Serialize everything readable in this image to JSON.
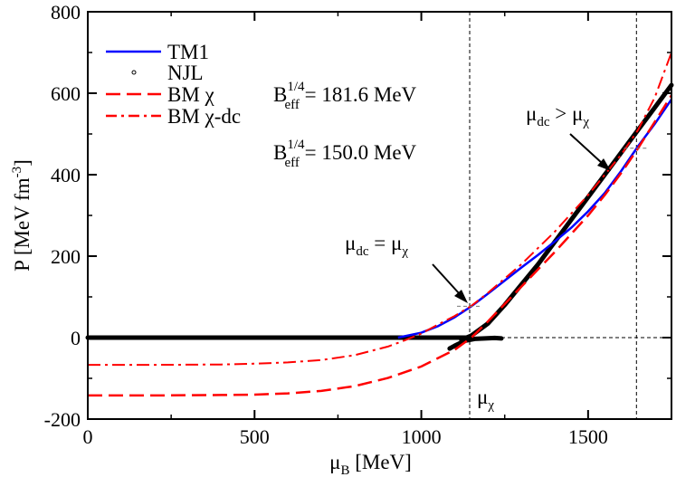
{
  "chart_data": {
    "type": "line",
    "title": "",
    "xlabel_main": "μ",
    "xlabel_sub": "B",
    "xlabel_unit": " [MeV]",
    "ylabel_main": "P [MeV fm",
    "ylabel_sup": "-3",
    "ylabel_end": "]",
    "xlim": [
      0,
      1750
    ],
    "ylim": [
      -200,
      800
    ],
    "xticks": [
      0,
      500,
      1000,
      1500
    ],
    "xtick_labels": [
      "0",
      "500",
      "1000",
      "1500"
    ],
    "yticks": [
      -200,
      0,
      200,
      400,
      600,
      800
    ],
    "ytick_labels": [
      "-200",
      "0",
      "200",
      "400",
      "600",
      "800"
    ],
    "legend": [
      {
        "label": "TM1",
        "color": "#0000ff",
        "style": "solid"
      },
      {
        "label": "NJL",
        "color": "#000000",
        "style": "circle"
      },
      {
        "label": "BM χ",
        "color": "#ff0000",
        "style": "dashed"
      },
      {
        "label": "BM χ-dc",
        "color": "#ff0000",
        "style": "dashdot"
      }
    ],
    "bag_labels": [
      {
        "prefix": "B",
        "sub": "eff",
        "sup": "1/4",
        "value": " = 181.6 MeV"
      },
      {
        "prefix": "B",
        "sub": "eff",
        "sup": "1/4",
        "value": " = 150.0 MeV"
      }
    ],
    "series": [
      {
        "name": "TM1",
        "color": "#0000ff",
        "x": [
          930,
          1000,
          1050,
          1100,
          1150,
          1200,
          1250,
          1300,
          1350,
          1400,
          1450,
          1500,
          1550,
          1600,
          1650,
          1700,
          1750
        ],
        "y": [
          0,
          12,
          28,
          50,
          77,
          108,
          140,
          172,
          203,
          236,
          270,
          310,
          355,
          410,
          470,
          525,
          585
        ]
      },
      {
        "name": "NJL",
        "color": "#000000",
        "segments": [
          {
            "x": [
              0,
              200,
              400,
              600,
              800,
              1000,
              1100,
              1140
            ],
            "y": [
              0,
              0,
              0,
              0,
              0,
              0,
              0,
              0
            ]
          },
          {
            "x": [
              1085,
              1100,
              1130,
              1160,
              1190,
              1220,
              1240
            ],
            "y": [
              -27,
              -20,
              -8,
              -3,
              -2,
              -1,
              -2
            ]
          },
          {
            "x": [
              1120,
              1150,
              1200,
              1250,
              1300,
              1350,
              1400,
              1450,
              1500,
              1550,
              1600,
              1650,
              1700,
              1750
            ],
            "y": [
              -5,
              5,
              35,
              80,
              130,
              180,
              235,
              290,
              345,
              400,
              455,
              510,
              565,
              620
            ]
          }
        ]
      },
      {
        "name": "BM χ",
        "color": "#ff0000",
        "x": [
          0,
          200,
          400,
          500,
          600,
          700,
          800,
          900,
          1000,
          1100,
          1150,
          1200,
          1300,
          1400,
          1500,
          1550,
          1600,
          1650,
          1700,
          1750
        ],
        "y": [
          -142,
          -142,
          -141,
          -140,
          -137,
          -131,
          -119,
          -99,
          -71,
          -30,
          0,
          40,
          125,
          210,
          300,
          350,
          405,
          465,
          530,
          595
        ]
      },
      {
        "name": "BM χ-dc",
        "color": "#ff0000",
        "x": [
          0,
          200,
          400,
          500,
          600,
          700,
          800,
          900,
          950,
          1000,
          1050,
          1100,
          1150,
          1200,
          1300,
          1400,
          1500,
          1600,
          1650,
          1700,
          1750
        ],
        "y": [
          -67,
          -67,
          -66,
          -64,
          -61,
          -55,
          -43,
          -22,
          -7,
          10,
          32,
          53,
          78,
          110,
          180,
          260,
          350,
          450,
          510,
          590,
          700
        ]
      }
    ],
    "annotations": [
      {
        "base": "μ",
        "sub1": "dc",
        "mid": " = μ",
        "sub2": "χ",
        "x": 1145,
        "y": 77
      },
      {
        "base": "μ",
        "sub1": "dc",
        "mid": " > μ",
        "sub2": "χ",
        "x": 1645,
        "y": 465
      }
    ],
    "vlines": [
      1145,
      1645
    ],
    "mu_chi_label": {
      "base": "μ",
      "sub": "χ"
    }
  }
}
